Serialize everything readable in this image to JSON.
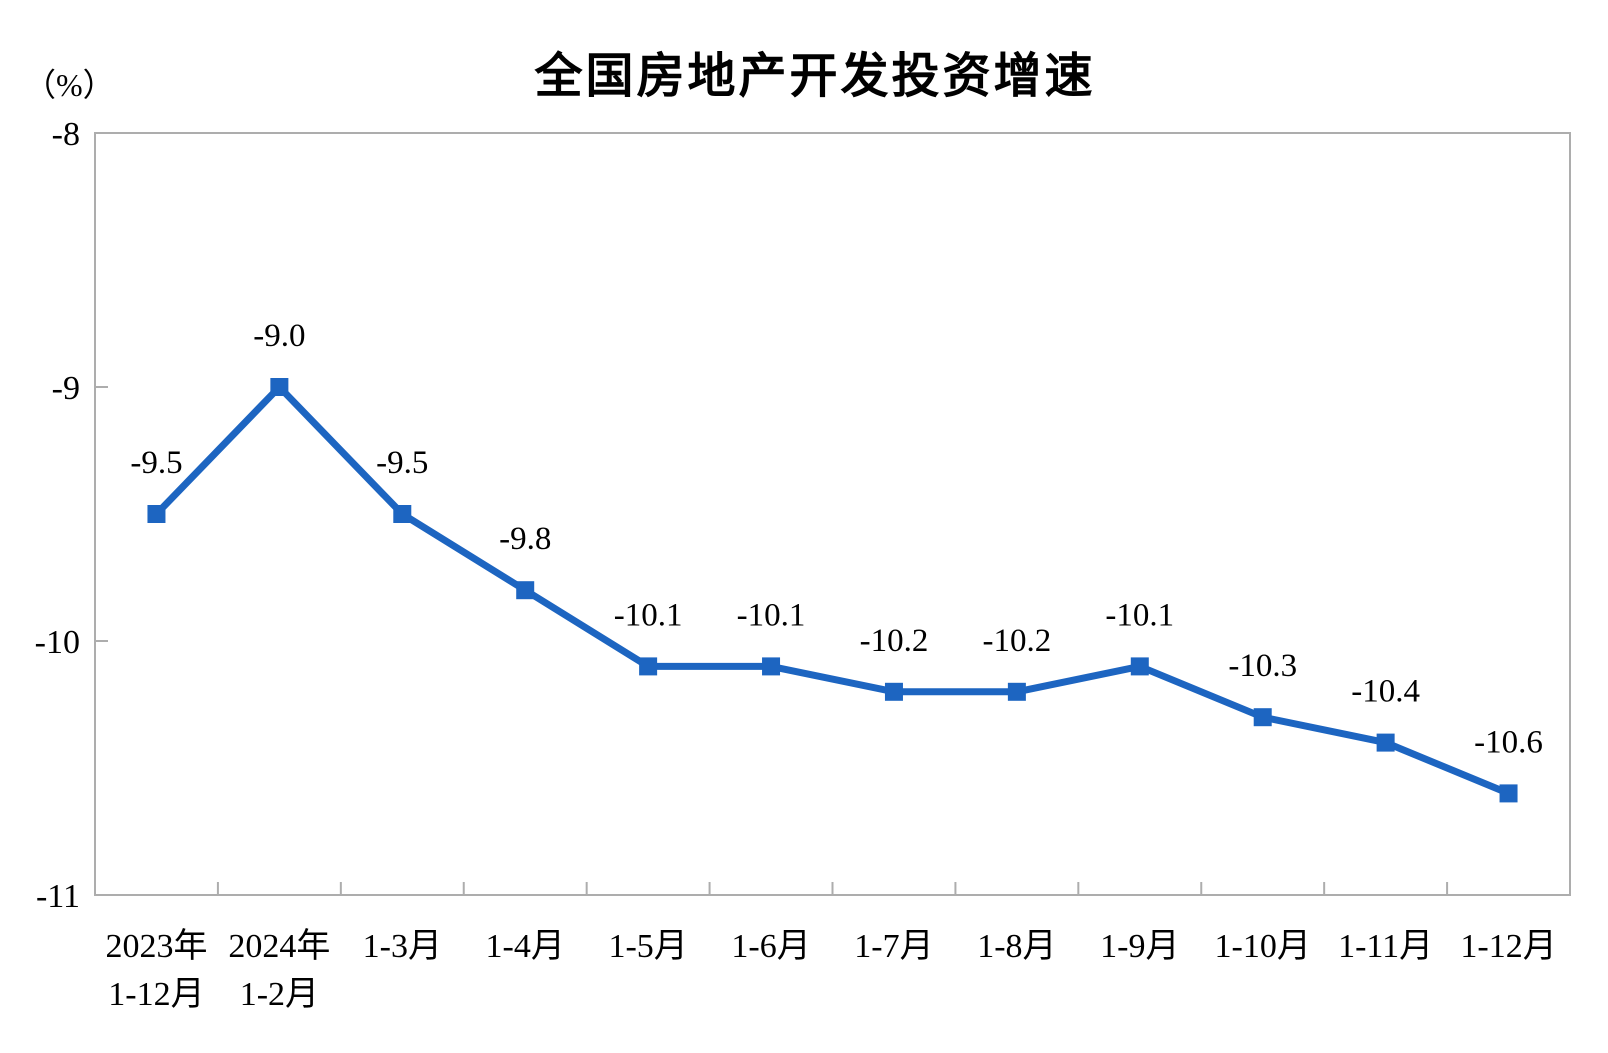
{
  "page": {
    "background": "#ffffff"
  },
  "chart_data": {
    "type": "line",
    "title": "全国房地产开发投资增速",
    "ylabel": "（%）",
    "xlabel": "",
    "categories": [
      [
        "2023年",
        "1-12月"
      ],
      [
        "2024年",
        "1-2月"
      ],
      [
        "1-3月"
      ],
      [
        "1-4月"
      ],
      [
        "1-5月"
      ],
      [
        "1-6月"
      ],
      [
        "1-7月"
      ],
      [
        "1-8月"
      ],
      [
        "1-9月"
      ],
      [
        "1-10月"
      ],
      [
        "1-11月"
      ],
      [
        "1-12月"
      ]
    ],
    "values": [
      -9.5,
      -9.0,
      -9.5,
      -9.8,
      -10.1,
      -10.1,
      -10.2,
      -10.2,
      -10.1,
      -10.3,
      -10.4,
      -10.6
    ],
    "data_labels": [
      "-9.5",
      "-9.0",
      "-9.5",
      "-9.8",
      "-10.1",
      "-10.1",
      "-10.2",
      "-10.2",
      "-10.1",
      "-10.3",
      "-10.4",
      "-10.6"
    ],
    "ylim": [
      -11,
      -8
    ],
    "yticks": [
      -8,
      -9,
      -10,
      -11
    ],
    "ytick_labels": [
      "-8",
      "-9",
      "-10",
      "-11"
    ],
    "grid": false,
    "legend": null,
    "marker": "square",
    "line_color": "#1D65C1",
    "axis_color": "#ADADAD",
    "label_color": "#000000"
  }
}
